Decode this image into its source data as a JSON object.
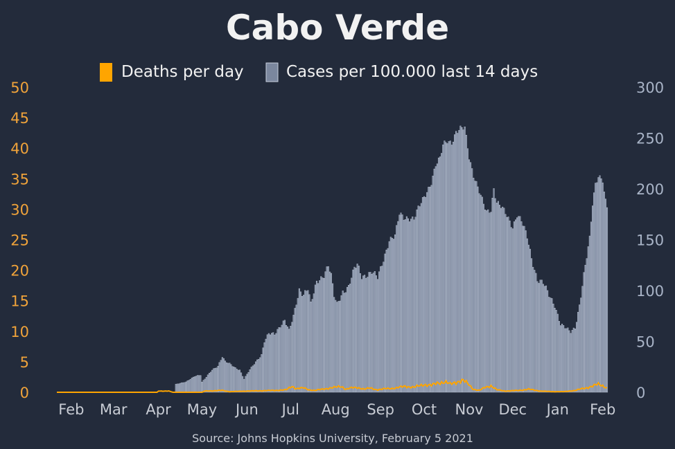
{
  "colors": {
    "background": "#232b3b",
    "deaths": "#ffa500",
    "cases_fill": "#7b879e",
    "cases_edge": "#c9d1df",
    "left_axis": "#f0a33a",
    "right_axis": "#a9b4c7",
    "text": "#f2f2f2"
  },
  "chart_data": {
    "type": "bar",
    "title": "Cabo Verde",
    "source": "Source: Johns Hopkins University, February 5 2021",
    "legend": {
      "placement": "top-center",
      "items": [
        "Deaths per day",
        "Cases per 100.000 last 14 days"
      ]
    },
    "left_axis": {
      "label": "",
      "ylim": [
        0,
        50
      ],
      "ticks": [
        0,
        5,
        10,
        15,
        20,
        25,
        30,
        35,
        40,
        45,
        50
      ]
    },
    "right_axis": {
      "label": "",
      "ylim": [
        0,
        300
      ],
      "ticks": [
        0,
        50,
        100,
        150,
        200,
        250,
        300
      ]
    },
    "x_axis": {
      "start_date": "2020-01-22",
      "end_date": "2021-02-04",
      "tick_labels": [
        "Feb",
        "Mar",
        "Apr",
        "May",
        "Jun",
        "Jul",
        "Aug",
        "Sep",
        "Oct",
        "Nov",
        "Dec",
        "Jan",
        "Feb"
      ],
      "tick_dates": [
        "2020-02-01",
        "2020-03-01",
        "2020-04-01",
        "2020-05-01",
        "2020-06-01",
        "2020-07-01",
        "2020-08-01",
        "2020-09-01",
        "2020-10-01",
        "2020-11-01",
        "2020-12-01",
        "2021-01-01",
        "2021-02-01"
      ]
    },
    "grid": false,
    "series": [
      {
        "name": "Cases per 100.000 last 14 days",
        "type": "bar",
        "axis": "right",
        "points": [
          [
            "2020-03-22",
            0
          ],
          [
            "2020-04-12",
            0
          ],
          [
            "2020-04-13",
            8
          ],
          [
            "2020-04-20",
            10
          ],
          [
            "2020-04-26",
            16
          ],
          [
            "2020-04-30",
            17
          ],
          [
            "2020-05-01",
            10
          ],
          [
            "2020-05-03",
            13
          ],
          [
            "2020-05-08",
            22
          ],
          [
            "2020-05-12",
            26
          ],
          [
            "2020-05-15",
            35
          ],
          [
            "2020-05-17",
            30
          ],
          [
            "2020-05-21",
            27
          ],
          [
            "2020-05-24",
            24
          ],
          [
            "2020-05-27",
            22
          ],
          [
            "2020-05-30",
            13
          ],
          [
            "2020-06-03",
            22
          ],
          [
            "2020-06-07",
            30
          ],
          [
            "2020-06-11",
            37
          ],
          [
            "2020-06-13",
            50
          ],
          [
            "2020-06-16",
            57
          ],
          [
            "2020-06-20",
            57
          ],
          [
            "2020-06-24",
            66
          ],
          [
            "2020-06-27",
            71
          ],
          [
            "2020-06-30",
            60
          ],
          [
            "2020-07-03",
            74
          ],
          [
            "2020-07-07",
            101
          ],
          [
            "2020-07-10",
            97
          ],
          [
            "2020-07-13",
            102
          ],
          [
            "2020-07-15",
            86
          ],
          [
            "2020-07-19",
            108
          ],
          [
            "2020-07-24",
            116
          ],
          [
            "2020-07-27",
            125
          ],
          [
            "2020-07-29",
            114
          ],
          [
            "2020-07-31",
            94
          ],
          [
            "2020-08-02",
            86
          ],
          [
            "2020-08-06",
            99
          ],
          [
            "2020-08-10",
            104
          ],
          [
            "2020-08-14",
            121
          ],
          [
            "2020-08-16",
            125
          ],
          [
            "2020-08-19",
            114
          ],
          [
            "2020-08-23",
            116
          ],
          [
            "2020-08-26",
            118
          ],
          [
            "2020-08-30",
            112
          ],
          [
            "2020-09-02",
            126
          ],
          [
            "2020-09-07",
            150
          ],
          [
            "2020-09-11",
            153
          ],
          [
            "2020-09-14",
            175
          ],
          [
            "2020-09-17",
            172
          ],
          [
            "2020-09-20",
            172
          ],
          [
            "2020-09-24",
            170
          ],
          [
            "2020-09-27",
            180
          ],
          [
            "2020-10-02",
            195
          ],
          [
            "2020-10-06",
            207
          ],
          [
            "2020-10-09",
            223
          ],
          [
            "2020-10-12",
            229
          ],
          [
            "2020-10-14",
            243
          ],
          [
            "2020-10-17",
            248
          ],
          [
            "2020-10-20",
            246
          ],
          [
            "2020-10-23",
            255
          ],
          [
            "2020-10-26",
            258
          ],
          [
            "2020-10-29",
            260
          ],
          [
            "2020-11-01",
            232
          ],
          [
            "2020-11-04",
            214
          ],
          [
            "2020-11-07",
            201
          ],
          [
            "2020-11-10",
            188
          ],
          [
            "2020-11-13",
            177
          ],
          [
            "2020-11-16",
            180
          ],
          [
            "2020-11-18",
            201
          ],
          [
            "2020-11-20",
            187
          ],
          [
            "2020-11-23",
            182
          ],
          [
            "2020-11-27",
            173
          ],
          [
            "2020-12-01",
            163
          ],
          [
            "2020-12-04",
            175
          ],
          [
            "2020-12-07",
            168
          ],
          [
            "2020-12-11",
            152
          ],
          [
            "2020-12-14",
            132
          ],
          [
            "2020-12-18",
            111
          ],
          [
            "2020-12-22",
            107
          ],
          [
            "2020-12-26",
            95
          ],
          [
            "2020-12-30",
            86
          ],
          [
            "2021-01-03",
            67
          ],
          [
            "2021-01-07",
            62
          ],
          [
            "2021-01-10",
            59
          ],
          [
            "2021-01-13",
            64
          ],
          [
            "2021-01-16",
            86
          ],
          [
            "2021-01-19",
            115
          ],
          [
            "2021-01-23",
            150
          ],
          [
            "2021-01-25",
            185
          ],
          [
            "2021-01-27",
            205
          ],
          [
            "2021-01-29",
            214
          ],
          [
            "2021-02-01",
            209
          ],
          [
            "2021-02-02",
            197
          ],
          [
            "2021-02-03",
            187
          ],
          [
            "2021-02-04",
            181
          ]
        ]
      },
      {
        "name": "Deaths per day",
        "type": "line",
        "axis": "left",
        "points": [
          [
            "2020-01-22",
            0
          ],
          [
            "2020-03-31",
            0
          ],
          [
            "2020-04-01",
            0.2
          ],
          [
            "2020-04-08",
            0.2
          ],
          [
            "2020-04-11",
            0
          ],
          [
            "2020-05-01",
            0
          ],
          [
            "2020-05-03",
            0.2
          ],
          [
            "2020-05-15",
            0.3
          ],
          [
            "2020-05-20",
            0.1
          ],
          [
            "2020-06-01",
            0.2
          ],
          [
            "2020-06-20",
            0.3
          ],
          [
            "2020-06-28",
            0.4
          ],
          [
            "2020-07-02",
            1
          ],
          [
            "2020-07-05",
            0.6
          ],
          [
            "2020-07-10",
            0.7
          ],
          [
            "2020-07-14",
            0.4
          ],
          [
            "2020-07-18",
            0.3
          ],
          [
            "2020-07-25",
            0.6
          ],
          [
            "2020-08-01",
            0.8
          ],
          [
            "2020-08-05",
            1
          ],
          [
            "2020-08-08",
            0.5
          ],
          [
            "2020-08-12",
            0.7
          ],
          [
            "2020-08-16",
            0.8
          ],
          [
            "2020-08-21",
            0.5
          ],
          [
            "2020-08-25",
            0.7
          ],
          [
            "2020-08-30",
            0.4
          ],
          [
            "2020-09-05",
            0.6
          ],
          [
            "2020-09-12",
            0.7
          ],
          [
            "2020-09-18",
            1
          ],
          [
            "2020-09-24",
            0.8
          ],
          [
            "2020-10-01",
            1.3
          ],
          [
            "2020-10-06",
            1.1
          ],
          [
            "2020-10-11",
            1.6
          ],
          [
            "2020-10-15",
            1.7
          ],
          [
            "2020-10-19",
            1.3
          ],
          [
            "2020-10-24",
            1.8
          ],
          [
            "2020-10-28",
            1.9
          ],
          [
            "2020-11-01",
            1.2
          ],
          [
            "2020-11-04",
            0.5
          ],
          [
            "2020-11-08",
            0.3
          ],
          [
            "2020-11-12",
            0.8
          ],
          [
            "2020-11-16",
            1.1
          ],
          [
            "2020-11-20",
            0.4
          ],
          [
            "2020-11-26",
            0.2
          ],
          [
            "2020-12-05",
            0.3
          ],
          [
            "2020-12-12",
            0.5
          ],
          [
            "2020-12-20",
            0.2
          ],
          [
            "2020-12-28",
            0.1
          ],
          [
            "2021-01-05",
            0.1
          ],
          [
            "2021-01-13",
            0.3
          ],
          [
            "2021-01-20",
            0.7
          ],
          [
            "2021-01-25",
            1
          ],
          [
            "2021-01-29",
            1.3
          ],
          [
            "2021-02-01",
            1.1
          ],
          [
            "2021-02-04",
            0.7
          ]
        ]
      }
    ]
  }
}
